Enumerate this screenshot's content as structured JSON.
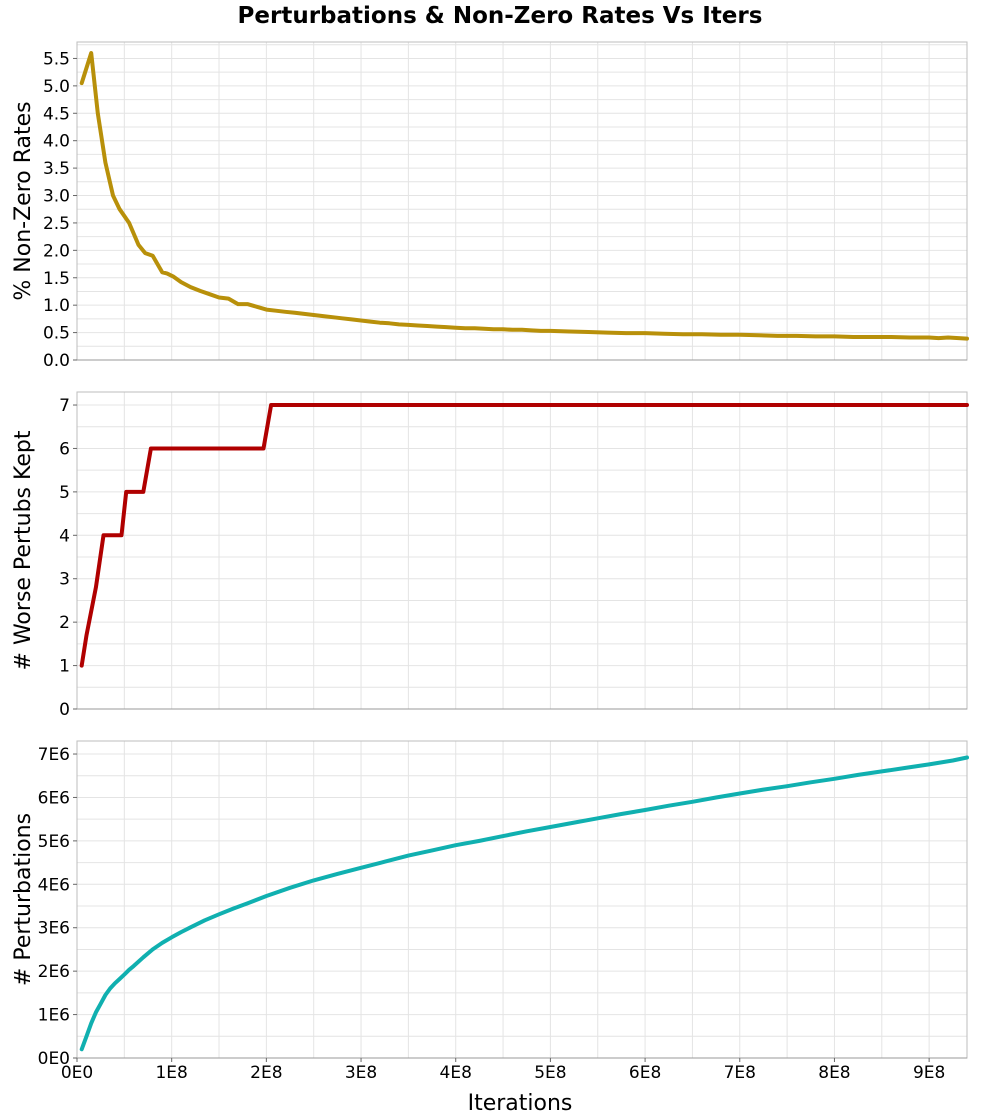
{
  "figure": {
    "title": "Perturbations & Non-Zero Rates Vs Iters"
  },
  "chart_data": [
    {
      "type": "line",
      "ylabel": "% Non-Zero Rates",
      "xlim": [
        0,
        940000000
      ],
      "ylim": [
        0,
        5.8
      ],
      "yticks": [
        0,
        0.5,
        1.0,
        1.5,
        2.0,
        2.5,
        3.0,
        3.5,
        4.0,
        4.5,
        5.0,
        5.5
      ],
      "ytick_labels": [
        "0.0",
        "0.5",
        "1.0",
        "1.5",
        "2.0",
        "2.5",
        "3.0",
        "3.5",
        "4.0",
        "4.5",
        "5.0",
        "5.5"
      ],
      "show_xticks": false,
      "grid": true,
      "color": "#b8900a",
      "series": [
        {
          "x": [
            5000000,
            15000000,
            22000000,
            30000000,
            38000000,
            45000000,
            55000000,
            65000000,
            72000000,
            80000000,
            85000000,
            90000000,
            95000000,
            102000000,
            110000000,
            120000000,
            130000000,
            140000000,
            150000000,
            160000000,
            170000000,
            180000000,
            190000000,
            200000000,
            210000000,
            220000000,
            230000000,
            240000000,
            250000000,
            260000000,
            270000000,
            280000000,
            290000000,
            300000000,
            310000000,
            320000000,
            330000000,
            340000000,
            350000000,
            360000000,
            370000000,
            380000000,
            390000000,
            400000000,
            410000000,
            420000000,
            430000000,
            440000000,
            450000000,
            460000000,
            470000000,
            480000000,
            490000000,
            500000000,
            520000000,
            540000000,
            560000000,
            580000000,
            600000000,
            620000000,
            640000000,
            660000000,
            680000000,
            700000000,
            720000000,
            740000000,
            760000000,
            780000000,
            800000000,
            820000000,
            840000000,
            860000000,
            880000000,
            900000000,
            910000000,
            920000000,
            940000000
          ],
          "y": [
            5.05,
            5.6,
            4.5,
            3.6,
            3.0,
            2.75,
            2.5,
            2.1,
            1.95,
            1.9,
            1.75,
            1.6,
            1.58,
            1.52,
            1.42,
            1.33,
            1.26,
            1.2,
            1.14,
            1.12,
            1.02,
            1.02,
            0.97,
            0.92,
            0.9,
            0.88,
            0.86,
            0.84,
            0.82,
            0.8,
            0.78,
            0.76,
            0.74,
            0.72,
            0.7,
            0.68,
            0.67,
            0.65,
            0.64,
            0.63,
            0.62,
            0.61,
            0.6,
            0.59,
            0.58,
            0.58,
            0.57,
            0.56,
            0.56,
            0.55,
            0.55,
            0.54,
            0.53,
            0.53,
            0.52,
            0.51,
            0.5,
            0.49,
            0.49,
            0.48,
            0.47,
            0.47,
            0.46,
            0.46,
            0.45,
            0.44,
            0.44,
            0.43,
            0.43,
            0.42,
            0.42,
            0.42,
            0.41,
            0.41,
            0.4,
            0.41,
            0.39
          ]
        }
      ]
    },
    {
      "type": "line",
      "ylabel": "# Worse Pertubs Kept",
      "xlim": [
        0,
        940000000
      ],
      "ylim": [
        0,
        7.3
      ],
      "yticks": [
        0,
        1,
        2,
        3,
        4,
        5,
        6,
        7
      ],
      "ytick_labels": [
        "0",
        "1",
        "2",
        "3",
        "4",
        "5",
        "6",
        "7"
      ],
      "show_xticks": false,
      "grid": true,
      "color": "#b00000",
      "series": [
        {
          "x": [
            5000000,
            10000000,
            20000000,
            28000000,
            40000000,
            47000000,
            52000000,
            60000000,
            70000000,
            78000000,
            90000000,
            150000000,
            197000000,
            205000000,
            940000000
          ],
          "y": [
            1,
            1.7,
            2.8,
            4,
            4,
            4,
            5,
            5,
            5,
            6,
            6,
            6,
            6,
            7,
            7
          ]
        }
      ]
    },
    {
      "type": "line",
      "ylabel": "# Perturbations",
      "xlabel": "Iterations",
      "xlim": [
        0,
        940000000
      ],
      "ylim": [
        0,
        7300000
      ],
      "yticks": [
        0,
        1000000,
        2000000,
        3000000,
        4000000,
        5000000,
        6000000,
        7000000
      ],
      "ytick_labels": [
        "0E0",
        "1E6",
        "2E6",
        "3E6",
        "4E6",
        "5E6",
        "6E6",
        "7E6"
      ],
      "xticks": [
        0,
        100000000,
        200000000,
        300000000,
        400000000,
        500000000,
        600000000,
        700000000,
        800000000,
        900000000
      ],
      "xtick_labels": [
        "0E0",
        "1E8",
        "2E8",
        "3E8",
        "4E8",
        "5E8",
        "6E8",
        "7E8",
        "8E8",
        "9E8"
      ],
      "show_xticks": true,
      "grid": true,
      "color": "#10b0b0",
      "series": [
        {
          "x": [
            5000000,
            10000000,
            15000000,
            20000000,
            25000000,
            30000000,
            35000000,
            40000000,
            45000000,
            50000000,
            55000000,
            60000000,
            70000000,
            80000000,
            90000000,
            100000000,
            110000000,
            120000000,
            135000000,
            150000000,
            165000000,
            180000000,
            200000000,
            225000000,
            250000000,
            275000000,
            300000000,
            325000000,
            350000000,
            375000000,
            400000000,
            425000000,
            450000000,
            475000000,
            500000000,
            525000000,
            550000000,
            575000000,
            600000000,
            625000000,
            650000000,
            675000000,
            700000000,
            725000000,
            750000000,
            775000000,
            800000000,
            825000000,
            850000000,
            875000000,
            900000000,
            925000000,
            940000000
          ],
          "y": [
            200000,
            500000,
            800000,
            1050000,
            1250000,
            1450000,
            1600000,
            1720000,
            1820000,
            1920000,
            2030000,
            2120000,
            2320000,
            2500000,
            2650000,
            2780000,
            2900000,
            3010000,
            3170000,
            3310000,
            3440000,
            3560000,
            3730000,
            3920000,
            4090000,
            4240000,
            4380000,
            4520000,
            4660000,
            4780000,
            4900000,
            5000000,
            5110000,
            5220000,
            5320000,
            5420000,
            5520000,
            5620000,
            5710000,
            5810000,
            5900000,
            6000000,
            6090000,
            6180000,
            6260000,
            6350000,
            6430000,
            6520000,
            6600000,
            6680000,
            6760000,
            6850000,
            6920000
          ]
        }
      ]
    }
  ]
}
